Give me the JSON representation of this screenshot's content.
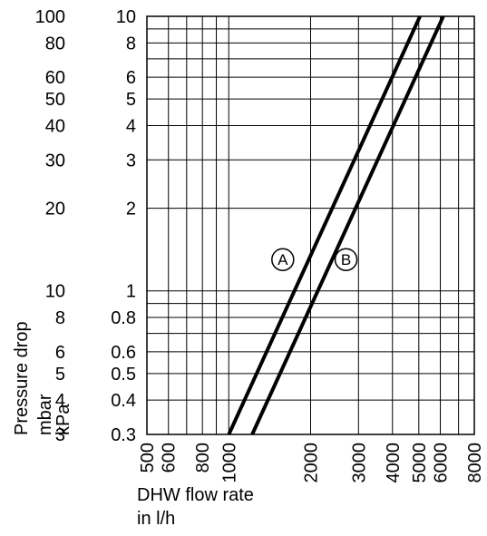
{
  "chart_data": {
    "type": "line",
    "title": "",
    "xlabel": [
      "DHW flow rate",
      "in l/h"
    ],
    "ylabel_mbar": [
      "Pressure drop",
      "mbar"
    ],
    "ylabel_kpa": "kPa",
    "x_scale": "log",
    "y_scale": "log",
    "xlim": [
      500,
      8000
    ],
    "ylim_kpa": [
      0.3,
      10
    ],
    "x_ticks": [
      {
        "value": 500,
        "label": "500"
      },
      {
        "value": 600,
        "label": "600"
      },
      {
        "value": 800,
        "label": "800"
      },
      {
        "value": 1000,
        "label": "1000"
      },
      {
        "value": 2000,
        "label": "2000"
      },
      {
        "value": 3000,
        "label": "3000"
      },
      {
        "value": 4000,
        "label": "4000"
      },
      {
        "value": 5000,
        "label": "5000"
      },
      {
        "value": 6000,
        "label": "6000"
      },
      {
        "value": 8000,
        "label": "8000"
      }
    ],
    "y_ticks_kpa": [
      {
        "value": 0.3,
        "label": "0.3"
      },
      {
        "value": 0.4,
        "label": "0.4"
      },
      {
        "value": 0.5,
        "label": "0.5"
      },
      {
        "value": 0.6,
        "label": "0.6"
      },
      {
        "value": 0.8,
        "label": "0.8"
      },
      {
        "value": 1,
        "label": "1"
      },
      {
        "value": 2,
        "label": "2"
      },
      {
        "value": 3,
        "label": "3"
      },
      {
        "value": 4,
        "label": "4"
      },
      {
        "value": 5,
        "label": "5"
      },
      {
        "value": 6,
        "label": "6"
      },
      {
        "value": 8,
        "label": "8"
      },
      {
        "value": 10,
        "label": "10"
      }
    ],
    "y_ticks_mbar": [
      {
        "value": 3,
        "label": "3"
      },
      {
        "value": 4,
        "label": "4"
      },
      {
        "value": 5,
        "label": "5"
      },
      {
        "value": 6,
        "label": "6"
      },
      {
        "value": 8,
        "label": "8"
      },
      {
        "value": 10,
        "label": "10"
      },
      {
        "value": 20,
        "label": "20"
      },
      {
        "value": 30,
        "label": "30"
      },
      {
        "value": 40,
        "label": "40"
      },
      {
        "value": 50,
        "label": "50"
      },
      {
        "value": 60,
        "label": "60"
      },
      {
        "value": 80,
        "label": "80"
      },
      {
        "value": 100,
        "label": "100"
      }
    ],
    "x_grid": [
      500,
      600,
      700,
      800,
      900,
      1000,
      2000,
      3000,
      4000,
      5000,
      6000,
      7000,
      8000
    ],
    "y_grid_kpa": [
      0.3,
      0.4,
      0.5,
      0.6,
      0.7,
      0.8,
      0.9,
      1,
      2,
      3,
      4,
      5,
      6,
      7,
      8,
      9,
      10
    ],
    "grid": true,
    "series": [
      {
        "name": "A",
        "color": "#000000",
        "points": [
          {
            "x": 1000,
            "y": 0.3
          },
          {
            "x": 5050,
            "y": 10
          }
        ],
        "label_at": {
          "x": 1580,
          "y": 1.3
        }
      },
      {
        "name": "B",
        "color": "#000000",
        "points": [
          {
            "x": 1220,
            "y": 0.3
          },
          {
            "x": 6150,
            "y": 10
          }
        ],
        "label_at": {
          "x": 2700,
          "y": 1.3
        }
      }
    ]
  }
}
